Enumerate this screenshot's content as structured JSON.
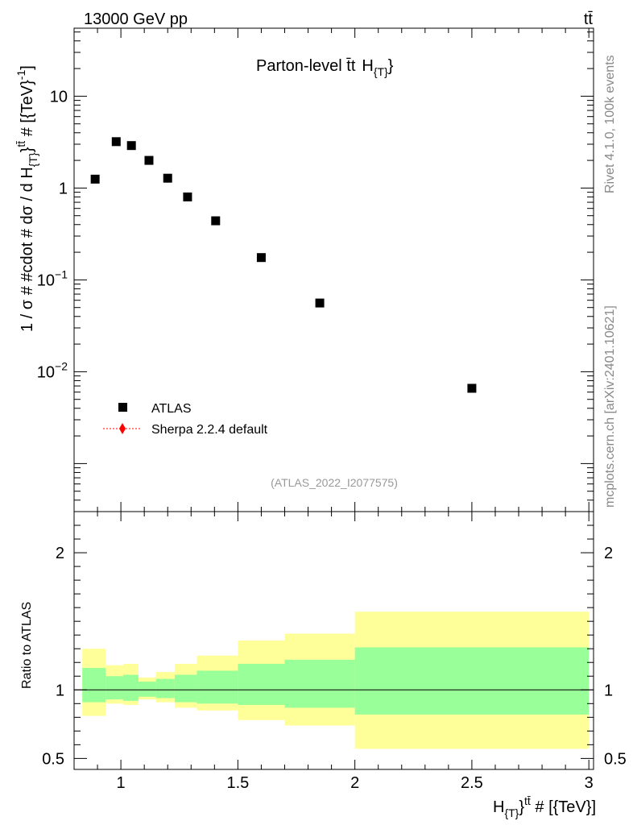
{
  "header": {
    "energy_label": "13000 GeV pp",
    "process_label": "tt̄"
  },
  "side_labels": {
    "rivet": "Rivet 4.1.0,  100k events",
    "mcplots": "mcplots.cern.ch [arXiv:2401.10621]"
  },
  "chart_data": [
    {
      "type": "scatter",
      "title": "Parton-level t̄t̄  H{T}",
      "title_main": "Parton-level t̄t",
      "title_var": "H",
      "title_sub": "{T}",
      "title_close": "}",
      "ylabel": "1 / σ # #cdot # dσ / d H{T}}tt̄ # [{TeV}-1]",
      "ylabel_parts": {
        "a": "1 / σ # #cdot # dσ / d H",
        "sub": "{T}",
        "b": "}",
        "sup": "tt̄",
        "c": " # [{TeV}",
        "sup2": "-1",
        "d": "]"
      },
      "yscale": "log",
      "ylim": [
        0.0003,
        55
      ],
      "xlim": [
        0.8,
        3.02
      ],
      "ytick_labels": [
        {
          "v": 10,
          "base": "10",
          "exp": ""
        },
        {
          "v": 1,
          "base": "1",
          "exp": ""
        },
        {
          "v": 0.1,
          "base": "10",
          "exp": "−1"
        },
        {
          "v": 0.01,
          "base": "10",
          "exp": "−2"
        }
      ],
      "watermark": "(ATLAS_2022_I2077575)",
      "legend": [
        {
          "name": "ATLAS",
          "marker": "square",
          "color": "#000000"
        },
        {
          "name": "Sherpa 2.2.4 default",
          "marker": "diamond-dotted-line",
          "color": "#ff0000"
        }
      ],
      "legend_position": "lower-left",
      "series": [
        {
          "name": "ATLAS",
          "x": [
            0.89,
            0.98,
            1.045,
            1.12,
            1.2,
            1.285,
            1.405,
            1.6,
            1.85,
            2.5
          ],
          "values": [
            1.25,
            3.2,
            2.9,
            2.0,
            1.28,
            0.8,
            0.44,
            0.175,
            0.056,
            0.0066
          ]
        }
      ]
    },
    {
      "type": "area",
      "ylabel": "Ratio to ATLAS",
      "xlabel": "H{T}}tt̄ # [{TeV}]",
      "xlabel_parts": {
        "a": "H",
        "sub": "{T}",
        "b": "}",
        "sup": "tt̄",
        "c": " # [{TeV}]"
      },
      "yscale": "linear",
      "ylim": [
        0.42,
        2.3
      ],
      "xlim": [
        0.8,
        3.02
      ],
      "ytick_labels": [
        {
          "v": 0.5,
          "label": "0.5"
        },
        {
          "v": 1,
          "label": "1"
        },
        {
          "v": 2,
          "label": "2"
        }
      ],
      "xtick_labels": [
        {
          "v": 1,
          "label": "1"
        },
        {
          "v": 1.5,
          "label": "1.5"
        },
        {
          "v": 2,
          "label": "2"
        },
        {
          "v": 2.5,
          "label": "2.5"
        },
        {
          "v": 3,
          "label": "3"
        }
      ],
      "bins": [
        {
          "lo": 0.835,
          "hi": 0.935,
          "inner": [
            0.91,
            1.16
          ],
          "outer": [
            0.81,
            1.3
          ]
        },
        {
          "lo": 0.935,
          "hi": 1.01,
          "inner": [
            0.93,
            1.1
          ],
          "outer": [
            0.9,
            1.18
          ]
        },
        {
          "lo": 1.01,
          "hi": 1.075,
          "inner": [
            0.92,
            1.11
          ],
          "outer": [
            0.89,
            1.19
          ]
        },
        {
          "lo": 1.075,
          "hi": 1.15,
          "inner": [
            0.95,
            1.06
          ],
          "outer": [
            0.93,
            1.09
          ]
        },
        {
          "lo": 1.15,
          "hi": 1.23,
          "inner": [
            0.94,
            1.08
          ],
          "outer": [
            0.91,
            1.13
          ]
        },
        {
          "lo": 1.23,
          "hi": 1.325,
          "inner": [
            0.91,
            1.11
          ],
          "outer": [
            0.87,
            1.19
          ]
        },
        {
          "lo": 1.325,
          "hi": 1.5,
          "inner": [
            0.9,
            1.14
          ],
          "outer": [
            0.85,
            1.25
          ]
        },
        {
          "lo": 1.5,
          "hi": 1.7,
          "inner": [
            0.89,
            1.19
          ],
          "outer": [
            0.78,
            1.36
          ]
        },
        {
          "lo": 1.7,
          "hi": 2.0,
          "inner": [
            0.87,
            1.22
          ],
          "outer": [
            0.74,
            1.41
          ]
        },
        {
          "lo": 2.0,
          "hi": 3.0,
          "inner": [
            0.82,
            1.31
          ],
          "outer": [
            0.57,
            1.57
          ]
        }
      ],
      "reference_line": 1,
      "colors": {
        "inner": "#99ff99",
        "outer": "#ffff99",
        "line": "#000000"
      }
    }
  ]
}
